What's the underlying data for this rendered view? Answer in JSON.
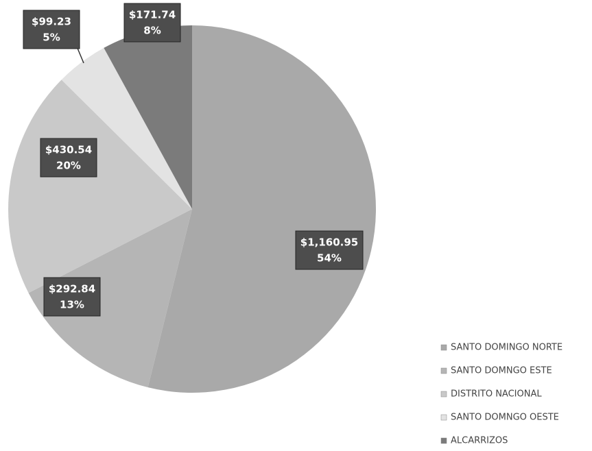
{
  "chart_data": {
    "type": "pie",
    "categories": [
      "SANTO DOMINGO NORTE",
      "SANTO DOMNGO ESTE",
      "DISTRITO NACIONAL",
      "SANTO DOMNGO OESTE",
      "ALCARRIZOS"
    ],
    "values": [
      1160.95,
      292.84,
      430.54,
      99.23,
      171.74
    ],
    "value_labels": [
      "$1,160.95",
      "$292.84",
      "$430.54",
      "$99.23",
      "$171.74"
    ],
    "percents": [
      54,
      13,
      20,
      5,
      8
    ],
    "percent_labels": [
      "54%",
      "13%",
      "20%",
      "5%",
      "8%"
    ],
    "colors": [
      "#a9a9a9",
      "#b5b5b5",
      "#c9c9c9",
      "#e3e3e3",
      "#7b7b7b"
    ],
    "legend": "bottom-right"
  }
}
